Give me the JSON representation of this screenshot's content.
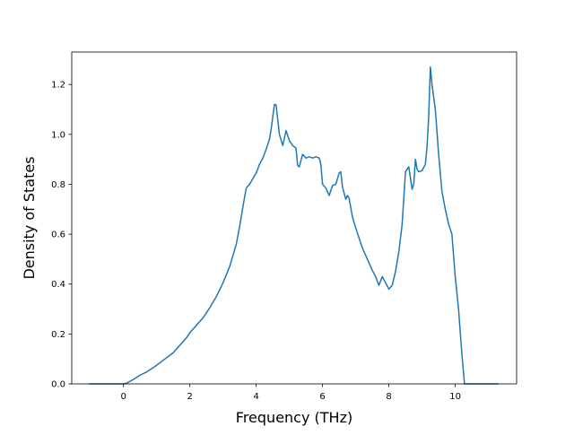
{
  "chart_data": {
    "type": "line",
    "title": "",
    "xlabel": "Frequency (THz)",
    "ylabel": "Density of States",
    "xlim": [
      -1.56,
      11.85
    ],
    "ylim": [
      0,
      1.33
    ],
    "xticks": [
      0,
      2,
      4,
      6,
      8,
      10
    ],
    "yticks": [
      0.0,
      0.2,
      0.4,
      0.6,
      0.8,
      1.0,
      1.2
    ],
    "xtick_labels": [
      "0",
      "2",
      "4",
      "6",
      "8",
      "10"
    ],
    "ytick_labels": [
      "0.0",
      "0.2",
      "0.4",
      "0.6",
      "0.8",
      "1.0",
      "1.2"
    ],
    "grid": false,
    "legend": false,
    "series": [
      {
        "color": "#1f77b4",
        "x": [
          -1.02,
          -0.5,
          0.0,
          0.1,
          0.3,
          0.5,
          0.7,
          0.9,
          1.1,
          1.3,
          1.5,
          1.7,
          1.9,
          2.0,
          2.2,
          2.4,
          2.6,
          2.8,
          3.0,
          3.2,
          3.4,
          3.5,
          3.6,
          3.7,
          3.8,
          4.0,
          4.1,
          4.2,
          4.3,
          4.4,
          4.45,
          4.5,
          4.55,
          4.6,
          4.7,
          4.8,
          4.9,
          5.0,
          5.1,
          5.2,
          5.25,
          5.3,
          5.4,
          5.5,
          5.6,
          5.7,
          5.8,
          5.9,
          5.95,
          6.0,
          6.1,
          6.2,
          6.3,
          6.4,
          6.5,
          6.55,
          6.6,
          6.7,
          6.75,
          6.8,
          6.9,
          7.0,
          7.1,
          7.2,
          7.3,
          7.4,
          7.5,
          7.6,
          7.7,
          7.8,
          7.9,
          8.0,
          8.1,
          8.2,
          8.3,
          8.4,
          8.5,
          8.6,
          8.7,
          8.75,
          8.8,
          8.85,
          8.9,
          9.0,
          9.1,
          9.15,
          9.2,
          9.25,
          9.3,
          9.4,
          9.5,
          9.6,
          9.7,
          9.8,
          9.9,
          10.0,
          10.1,
          10.2,
          10.28,
          10.35,
          10.5,
          10.8,
          11.28
        ],
        "y": [
          0.0,
          0.0,
          0.0,
          0.003,
          0.018,
          0.035,
          0.048,
          0.065,
          0.085,
          0.105,
          0.125,
          0.155,
          0.185,
          0.205,
          0.235,
          0.265,
          0.305,
          0.35,
          0.405,
          0.47,
          0.56,
          0.63,
          0.71,
          0.785,
          0.8,
          0.845,
          0.88,
          0.905,
          0.94,
          0.98,
          1.02,
          1.07,
          1.12,
          1.118,
          1.0,
          0.955,
          1.015,
          0.975,
          0.955,
          0.945,
          0.875,
          0.87,
          0.92,
          0.905,
          0.91,
          0.905,
          0.91,
          0.905,
          0.88,
          0.8,
          0.785,
          0.755,
          0.795,
          0.8,
          0.845,
          0.85,
          0.79,
          0.74,
          0.755,
          0.745,
          0.67,
          0.625,
          0.585,
          0.545,
          0.515,
          0.485,
          0.455,
          0.43,
          0.395,
          0.43,
          0.405,
          0.38,
          0.395,
          0.45,
          0.53,
          0.64,
          0.85,
          0.87,
          0.78,
          0.8,
          0.9,
          0.86,
          0.85,
          0.855,
          0.88,
          0.95,
          1.07,
          1.27,
          1.2,
          1.1,
          0.92,
          0.77,
          0.7,
          0.64,
          0.6,
          0.43,
          0.3,
          0.12,
          0.0,
          0.0,
          0.0,
          0.0,
          0.0
        ]
      }
    ]
  }
}
